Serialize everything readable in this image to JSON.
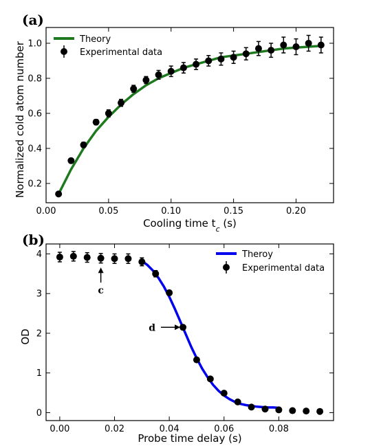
{
  "chart_data": [
    {
      "panel": "(a)",
      "type": "scatter",
      "xlabel": "Cooling time t",
      "xlabel_sub": "c",
      "xlabel_unit": " (s)",
      "ylabel": "Normalized cold atom number",
      "xlim": [
        0,
        0.23
      ],
      "ylim": [
        0.09,
        1.09
      ],
      "xticks": [
        0.0,
        0.05,
        0.1,
        0.15,
        0.2
      ],
      "xtick_labels": [
        "0.00",
        "0.05",
        "0.10",
        "0.15",
        "0.20"
      ],
      "yticks": [
        0.2,
        0.4,
        0.6,
        0.8,
        1.0
      ],
      "ytick_labels": [
        "0.2",
        "0.4",
        "0.6",
        "0.8",
        "1.0"
      ],
      "legend_position": "top-left",
      "series": [
        {
          "name": "Experimental data",
          "kind": "points",
          "color": "#000000",
          "x": [
            0.01,
            0.02,
            0.03,
            0.04,
            0.05,
            0.06,
            0.07,
            0.08,
            0.09,
            0.1,
            0.11,
            0.12,
            0.13,
            0.14,
            0.15,
            0.16,
            0.17,
            0.18,
            0.19,
            0.2,
            0.21,
            0.22
          ],
          "y": [
            0.14,
            0.33,
            0.42,
            0.55,
            0.6,
            0.66,
            0.74,
            0.79,
            0.82,
            0.84,
            0.86,
            0.88,
            0.9,
            0.91,
            0.92,
            0.94,
            0.97,
            0.96,
            0.99,
            0.98,
            1.0,
            0.99
          ],
          "err": [
            0.01,
            0.01,
            0.015,
            0.015,
            0.02,
            0.02,
            0.02,
            0.02,
            0.025,
            0.03,
            0.03,
            0.03,
            0.03,
            0.035,
            0.035,
            0.035,
            0.04,
            0.04,
            0.045,
            0.045,
            0.045,
            0.045
          ]
        },
        {
          "name": "Theory",
          "kind": "curve",
          "color": "#1f7a1f",
          "x": [
            0.01,
            0.02,
            0.03,
            0.04,
            0.05,
            0.06,
            0.07,
            0.08,
            0.09,
            0.1,
            0.11,
            0.12,
            0.13,
            0.14,
            0.15,
            0.16,
            0.17,
            0.18,
            0.19,
            0.2,
            0.21,
            0.22
          ],
          "y": [
            0.14,
            0.28,
            0.4,
            0.5,
            0.58,
            0.65,
            0.71,
            0.76,
            0.8,
            0.83,
            0.86,
            0.88,
            0.9,
            0.92,
            0.93,
            0.94,
            0.95,
            0.96,
            0.97,
            0.975,
            0.98,
            0.985
          ]
        }
      ],
      "legend": [
        "Theory",
        "Experimental data"
      ]
    },
    {
      "panel": "(b)",
      "type": "scatter",
      "xlabel": "Probe time delay (s)",
      "ylabel": "OD",
      "xlim": [
        -0.005,
        0.1
      ],
      "ylim": [
        -0.2,
        4.25
      ],
      "xticks": [
        0.0,
        0.02,
        0.04,
        0.06,
        0.08
      ],
      "xtick_labels": [
        "0.00",
        "0.02",
        "0.04",
        "0.06",
        "0.08"
      ],
      "yticks": [
        0,
        1,
        2,
        3,
        4
      ],
      "ytick_labels": [
        "0",
        "1",
        "2",
        "3",
        "4"
      ],
      "legend_position": "top-right",
      "series": [
        {
          "name": "Experimental data",
          "kind": "points",
          "color": "#000000",
          "x": [
            0.0,
            0.005,
            0.01,
            0.015,
            0.02,
            0.025,
            0.03,
            0.035,
            0.04,
            0.045,
            0.05,
            0.055,
            0.06,
            0.065,
            0.07,
            0.075,
            0.08,
            0.085,
            0.09,
            0.095
          ],
          "y": [
            3.92,
            3.94,
            3.91,
            3.89,
            3.88,
            3.88,
            3.8,
            3.5,
            3.02,
            2.15,
            1.33,
            0.85,
            0.49,
            0.27,
            0.14,
            0.09,
            0.07,
            0.05,
            0.04,
            0.03
          ],
          "err": [
            0.12,
            0.12,
            0.12,
            0.12,
            0.12,
            0.12,
            0.1,
            0.08,
            0.06,
            0.03,
            0.02,
            0.02,
            0.0,
            0.0,
            0.0,
            0.0,
            0.0,
            0.0,
            0.0,
            0.0
          ]
        },
        {
          "name": "Theroy",
          "kind": "curve",
          "color": "#0000ee",
          "x": [
            0.03,
            0.032,
            0.034,
            0.036,
            0.038,
            0.04,
            0.042,
            0.044,
            0.046,
            0.048,
            0.05,
            0.052,
            0.054,
            0.056,
            0.058,
            0.06,
            0.062,
            0.064,
            0.066,
            0.068,
            0.07,
            0.072,
            0.074,
            0.076,
            0.078,
            0.08
          ],
          "y": [
            3.82,
            3.72,
            3.58,
            3.4,
            3.18,
            2.92,
            2.62,
            2.3,
            1.98,
            1.66,
            1.37,
            1.11,
            0.89,
            0.7,
            0.55,
            0.43,
            0.34,
            0.27,
            0.22,
            0.19,
            0.17,
            0.15,
            0.14,
            0.13,
            0.13,
            0.12
          ]
        }
      ],
      "annotations": [
        {
          "text": "c",
          "x": 0.015,
          "y": 3.45,
          "arrow": "up"
        },
        {
          "text": "d",
          "x": 0.045,
          "y": 2.15,
          "arrow": "right"
        }
      ],
      "legend": [
        "Theroy",
        "Experimental data"
      ]
    }
  ]
}
